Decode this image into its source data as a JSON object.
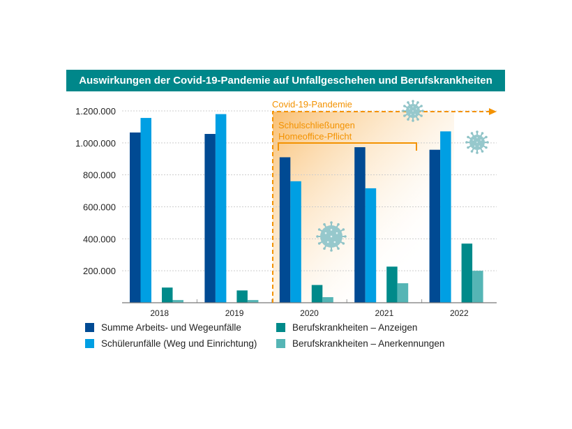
{
  "chart_data": {
    "type": "bar",
    "title": "Auswirkungen der Covid-19-Pandemie auf Unfallgeschehen und Berufskrankheiten",
    "categories": [
      "2018",
      "2019",
      "2020",
      "2021",
      "2022"
    ],
    "ylim": [
      0,
      1200000
    ],
    "yticks": [
      "200.000",
      "400.000",
      "600.000",
      "800.000",
      "1.000.000",
      "1.200.000"
    ],
    "grid": true,
    "legend_position": "bottom",
    "series": [
      {
        "name": "Summe Arbeits- und Wegeunfälle",
        "color": "#004a93",
        "values": [
          1065000,
          1056000,
          910000,
          973000,
          957000
        ]
      },
      {
        "name": "Schülerunfälle (Weg und Einrichtung)",
        "color": "#009fe3",
        "values": [
          1156000,
          1180000,
          760000,
          716000,
          1072000
        ]
      },
      {
        "name": "Berufskrankheiten – Anzeigen",
        "color": "#008a8a",
        "values": [
          95000,
          77000,
          111000,
          226000,
          370000
        ]
      },
      {
        "name": "Berufskrankheiten – Anerkennungen",
        "color": "#55b5b5",
        "values": [
          17000,
          17000,
          35000,
          122000,
          200000
        ]
      }
    ],
    "annotations": {
      "pandemic": "Covid-19-Pandemie",
      "measures_line1": "Schulschließungen",
      "measures_line2": "Homeoffice-Pflicht",
      "color": "#f39200"
    }
  }
}
